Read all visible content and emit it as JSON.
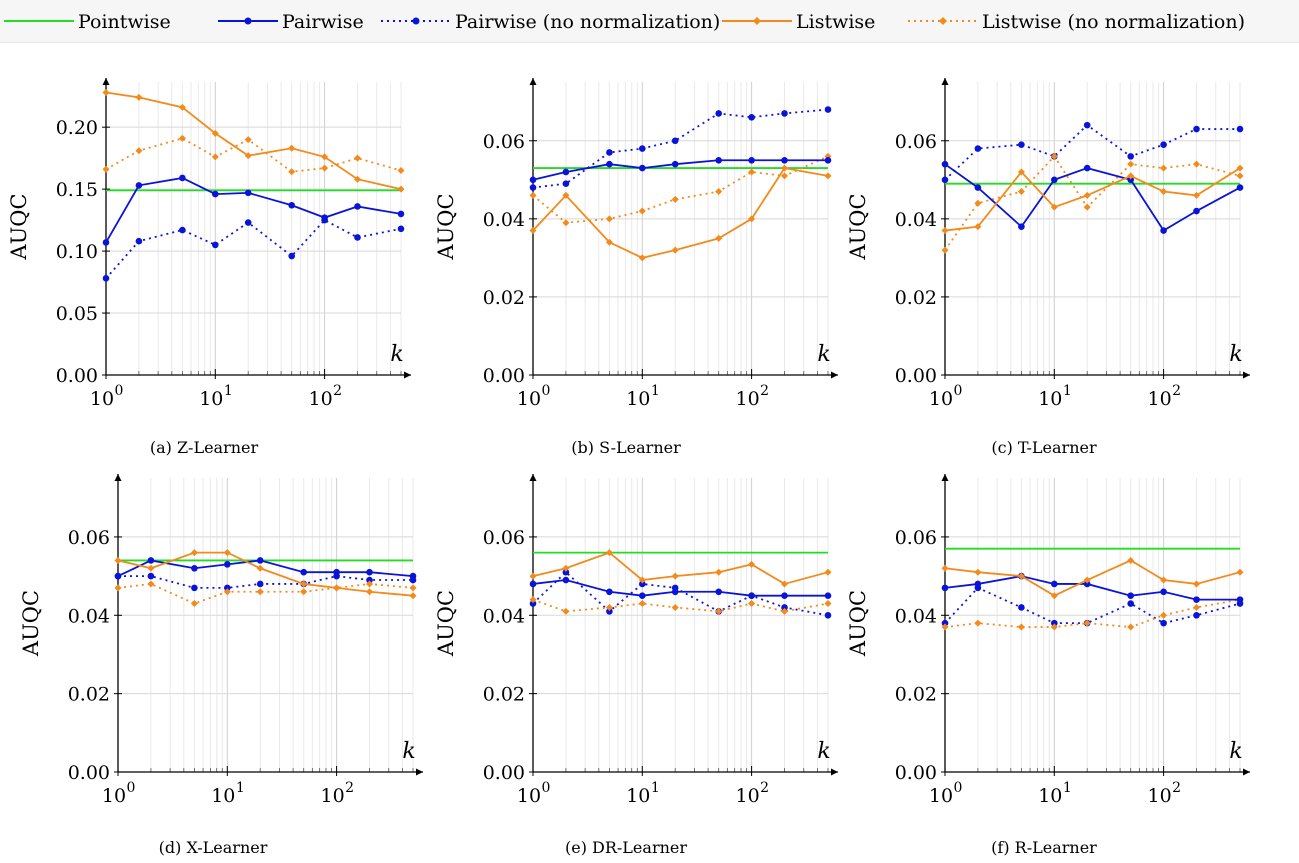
{
  "legend": [
    {
      "name": "Pointwise",
      "color": "#22dd22",
      "dash": false,
      "marker": "none"
    },
    {
      "name": "Pairwise",
      "color": "#0a14d8",
      "dash": false,
      "marker": "circle"
    },
    {
      "name": "Pairwise (no normalization)",
      "color": "#0a14d8",
      "dash": true,
      "marker": "circle"
    },
    {
      "name": "Listwise",
      "color": "#f28a1c",
      "dash": false,
      "marker": "diamond"
    },
    {
      "name": "Listwise (no normalization)",
      "color": "#f28a1c",
      "dash": true,
      "marker": "diamond"
    }
  ],
  "chart_data": [
    {
      "type": "line",
      "caption": "(a) Z-Learner",
      "ylabel": "AUQC",
      "xlabel": "k",
      "xscale": "log",
      "xlim": [
        1,
        500
      ],
      "ylim": [
        0,
        0.23
      ],
      "yticks": [
        "0.00",
        "0.05",
        "0.10",
        "0.15",
        "0.20"
      ],
      "ytick_values": [
        0,
        0.05,
        0.1,
        0.15,
        0.2
      ],
      "xticks": [
        "10^0",
        "10^1",
        "10^2"
      ],
      "x": [
        1,
        2,
        5,
        10,
        20,
        50,
        100,
        200,
        500
      ],
      "series": [
        {
          "name": "Pointwise",
          "values": [
            0.149,
            0.149,
            0.149,
            0.149,
            0.149,
            0.149,
            0.149,
            0.149,
            0.149
          ]
        },
        {
          "name": "Pairwise",
          "values": [
            0.107,
            0.153,
            0.159,
            0.146,
            0.147,
            0.137,
            0.127,
            0.136,
            0.13
          ]
        },
        {
          "name": "Pairwise (no normalization)",
          "values": [
            0.078,
            0.108,
            0.117,
            0.105,
            0.123,
            0.096,
            0.125,
            0.111,
            0.118
          ]
        },
        {
          "name": "Listwise",
          "values": [
            0.228,
            0.224,
            0.216,
            0.195,
            0.177,
            0.183,
            0.176,
            0.158,
            0.15
          ]
        },
        {
          "name": "Listwise (no normalization)",
          "values": [
            0.166,
            0.181,
            0.191,
            0.176,
            0.19,
            0.164,
            0.167,
            0.175,
            0.165
          ]
        }
      ]
    },
    {
      "type": "line",
      "caption": "(b) S-Learner",
      "ylabel": "AUQC",
      "xlabel": "k",
      "xscale": "log",
      "xlim": [
        1,
        500
      ],
      "ylim": [
        0,
        0.073
      ],
      "yticks": [
        "0.00",
        "0.02",
        "0.04",
        "0.06"
      ],
      "ytick_values": [
        0,
        0.02,
        0.04,
        0.06
      ],
      "xticks": [
        "10^0",
        "10^1",
        "10^2"
      ],
      "x": [
        1,
        2,
        5,
        10,
        20,
        50,
        100,
        200,
        500
      ],
      "series": [
        {
          "name": "Pointwise",
          "values": [
            0.053,
            0.053,
            0.053,
            0.053,
            0.053,
            0.053,
            0.053,
            0.053,
            0.053
          ]
        },
        {
          "name": "Pairwise",
          "values": [
            0.05,
            0.052,
            0.054,
            0.053,
            0.054,
            0.055,
            0.055,
            0.055,
            0.055
          ]
        },
        {
          "name": "Pairwise (no normalization)",
          "values": [
            0.048,
            0.049,
            0.057,
            0.058,
            0.06,
            0.067,
            0.066,
            0.067,
            0.068
          ]
        },
        {
          "name": "Listwise",
          "values": [
            0.037,
            0.046,
            0.034,
            0.03,
            0.032,
            0.035,
            0.04,
            0.053,
            0.051
          ]
        },
        {
          "name": "Listwise (no normalization)",
          "values": [
            0.046,
            0.039,
            0.04,
            0.042,
            0.045,
            0.047,
            0.052,
            0.051,
            0.056
          ]
        }
      ]
    },
    {
      "type": "line",
      "caption": "(c) T-Learner",
      "ylabel": "AUQC",
      "xlabel": "k",
      "xscale": "log",
      "xlim": [
        1,
        500
      ],
      "ylim": [
        0,
        0.073
      ],
      "yticks": [
        "0.00",
        "0.02",
        "0.04",
        "0.06"
      ],
      "ytick_values": [
        0,
        0.02,
        0.04,
        0.06
      ],
      "xticks": [
        "10^0",
        "10^1",
        "10^2"
      ],
      "x": [
        1,
        2,
        5,
        10,
        20,
        50,
        100,
        200,
        500
      ],
      "series": [
        {
          "name": "Pointwise",
          "values": [
            0.049,
            0.049,
            0.049,
            0.049,
            0.049,
            0.049,
            0.049,
            0.049,
            0.049
          ]
        },
        {
          "name": "Pairwise",
          "values": [
            0.054,
            0.048,
            0.038,
            0.05,
            0.053,
            0.05,
            0.037,
            0.042,
            0.048
          ]
        },
        {
          "name": "Pairwise (no normalization)",
          "values": [
            0.05,
            0.058,
            0.059,
            0.056,
            0.064,
            0.056,
            0.059,
            0.063,
            0.063
          ]
        },
        {
          "name": "Listwise",
          "values": [
            0.037,
            0.038,
            0.052,
            0.043,
            0.046,
            0.051,
            0.047,
            0.046,
            0.053
          ]
        },
        {
          "name": "Listwise (no normalization)",
          "values": [
            0.032,
            0.044,
            0.047,
            0.056,
            0.043,
            0.054,
            0.053,
            0.054,
            0.051
          ]
        }
      ]
    },
    {
      "type": "line",
      "caption": "(d) X-Learner",
      "ylabel": "AUQC",
      "xlabel": "k",
      "xscale": "log",
      "xlim": [
        1,
        500
      ],
      "ylim": [
        0,
        0.073
      ],
      "yticks": [
        "0.00",
        "0.02",
        "0.04",
        "0.06"
      ],
      "ytick_values": [
        0,
        0.02,
        0.04,
        0.06
      ],
      "xticks": [
        "10^0",
        "10^1",
        "10^2"
      ],
      "x": [
        1,
        2,
        5,
        10,
        20,
        50,
        100,
        200,
        500
      ],
      "series": [
        {
          "name": "Pointwise",
          "values": [
            0.054,
            0.054,
            0.054,
            0.054,
            0.054,
            0.054,
            0.054,
            0.054,
            0.054
          ]
        },
        {
          "name": "Pairwise",
          "values": [
            0.05,
            0.054,
            0.052,
            0.053,
            0.054,
            0.051,
            0.051,
            0.051,
            0.05
          ]
        },
        {
          "name": "Pairwise (no normalization)",
          "values": [
            0.05,
            0.05,
            0.047,
            0.047,
            0.048,
            0.048,
            0.05,
            0.049,
            0.049
          ]
        },
        {
          "name": "Listwise",
          "values": [
            0.054,
            0.052,
            0.056,
            0.056,
            0.052,
            0.048,
            0.047,
            0.046,
            0.045
          ]
        },
        {
          "name": "Listwise (no normalization)",
          "values": [
            0.047,
            0.048,
            0.043,
            0.046,
            0.046,
            0.046,
            0.047,
            0.048,
            0.047
          ]
        }
      ]
    },
    {
      "type": "line",
      "caption": "(e) DR-Learner",
      "ylabel": "AUQC",
      "xlabel": "k",
      "xscale": "log",
      "xlim": [
        1,
        500
      ],
      "ylim": [
        0,
        0.073
      ],
      "yticks": [
        "0.00",
        "0.02",
        "0.04",
        "0.06"
      ],
      "ytick_values": [
        0,
        0.02,
        0.04,
        0.06
      ],
      "xticks": [
        "10^0",
        "10^1",
        "10^2"
      ],
      "x": [
        1,
        2,
        5,
        10,
        20,
        50,
        100,
        200,
        500
      ],
      "series": [
        {
          "name": "Pointwise",
          "values": [
            0.056,
            0.056,
            0.056,
            0.056,
            0.056,
            0.056,
            0.056,
            0.056,
            0.056
          ]
        },
        {
          "name": "Pairwise",
          "values": [
            0.048,
            0.049,
            0.046,
            0.045,
            0.046,
            0.046,
            0.045,
            0.045,
            0.045
          ]
        },
        {
          "name": "Pairwise (no normalization)",
          "values": [
            0.043,
            0.051,
            0.041,
            0.048,
            0.047,
            0.041,
            0.045,
            0.042,
            0.04
          ]
        },
        {
          "name": "Listwise",
          "values": [
            0.05,
            0.052,
            0.056,
            0.049,
            0.05,
            0.051,
            0.053,
            0.048,
            0.051
          ]
        },
        {
          "name": "Listwise (no normalization)",
          "values": [
            0.044,
            0.041,
            0.042,
            0.043,
            0.042,
            0.041,
            0.043,
            0.041,
            0.043
          ]
        }
      ]
    },
    {
      "type": "line",
      "caption": "(f) R-Learner",
      "ylabel": "AUQC",
      "xlabel": "k",
      "xscale": "log",
      "xlim": [
        1,
        500
      ],
      "ylim": [
        0,
        0.073
      ],
      "yticks": [
        "0.00",
        "0.02",
        "0.04",
        "0.06"
      ],
      "ytick_values": [
        0,
        0.02,
        0.04,
        0.06
      ],
      "xticks": [
        "10^0",
        "10^1",
        "10^2"
      ],
      "x": [
        1,
        2,
        5,
        10,
        20,
        50,
        100,
        200,
        500
      ],
      "series": [
        {
          "name": "Pointwise",
          "values": [
            0.057,
            0.057,
            0.057,
            0.057,
            0.057,
            0.057,
            0.057,
            0.057,
            0.057
          ]
        },
        {
          "name": "Pairwise",
          "values": [
            0.047,
            0.048,
            0.05,
            0.048,
            0.048,
            0.045,
            0.046,
            0.044,
            0.044
          ]
        },
        {
          "name": "Pairwise (no normalization)",
          "values": [
            0.038,
            0.047,
            0.042,
            0.038,
            0.038,
            0.043,
            0.038,
            0.04,
            0.043
          ]
        },
        {
          "name": "Listwise",
          "values": [
            0.052,
            0.051,
            0.05,
            0.045,
            0.049,
            0.054,
            0.049,
            0.048,
            0.051
          ]
        },
        {
          "name": "Listwise (no normalization)",
          "values": [
            0.037,
            0.038,
            0.037,
            0.037,
            0.038,
            0.037,
            0.04,
            0.042,
            0.044
          ]
        }
      ]
    }
  ]
}
